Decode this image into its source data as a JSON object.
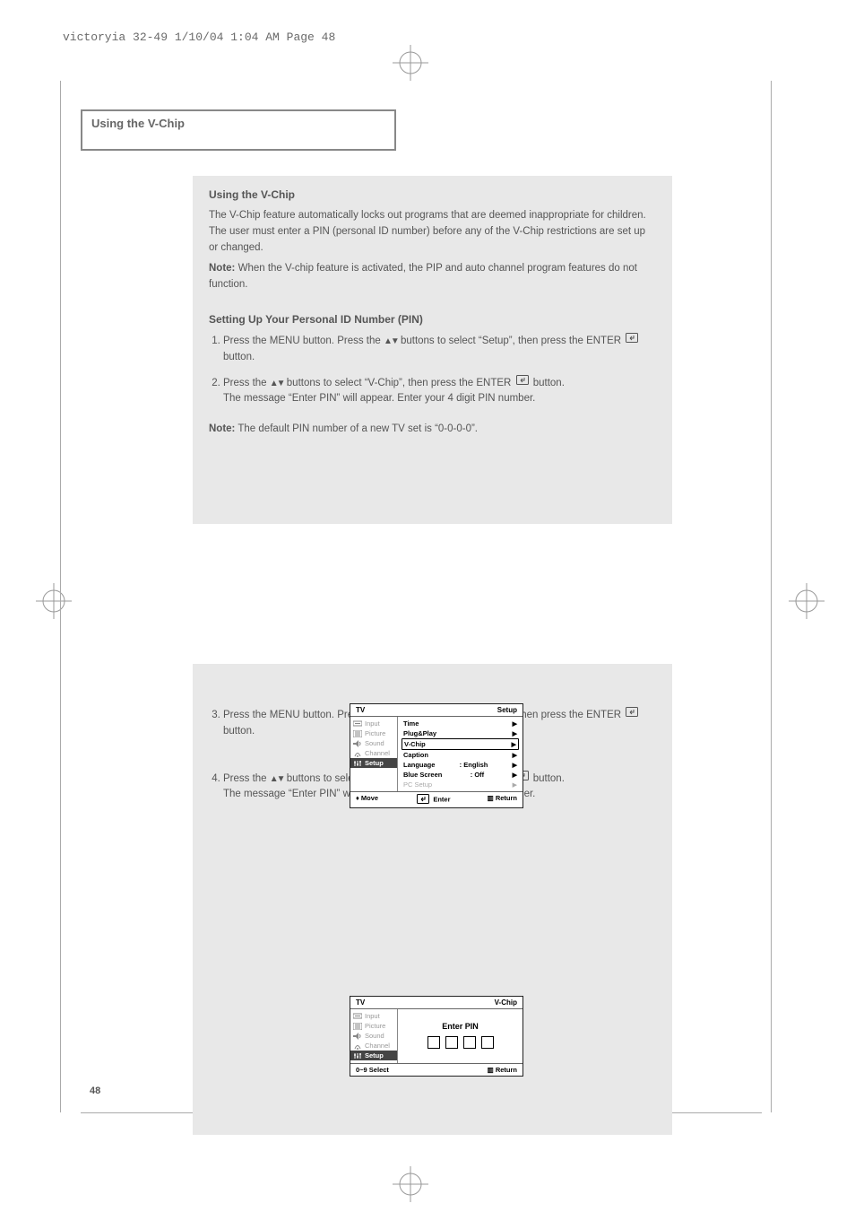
{
  "header": "victoryia 32-49  1/10/04 1:04 AM  Page 48",
  "pagenum": "48",
  "title": {
    "line": "Using the V-Chip"
  },
  "panel1": {
    "heading": "Using the V-Chip",
    "intro": "The V-Chip feature automatically locks out programs that are deemed inappropriate for children. The user must enter a PIN (personal ID number) before any of the V-Chip restrictions are set up or changed.",
    "note_label": "Note:",
    "note_body": "When the V-chip feature is activated, the PIP and auto channel program features do not function.",
    "sub1": "Setting Up Your Personal ID Number (PIN)",
    "step1_a": "Press the MENU button. Press the ",
    "step1_b": " buttons to select “Setup”, then press the ENTER ",
    "step1_c": " button.",
    "step2_a": "Press the ",
    "step2_b": " buttons to select “V-Chip”, then press the ENTER ",
    "step2_c": " button.",
    "step2_d": "The message “Enter PIN” will appear. Enter your 4 digit PIN number.",
    "foot_label": "Note:",
    "foot_body": "The default PIN number of a new TV set is “0-0-0-0”."
  },
  "panel2": {
    "step3_a": "Press the MENU button. Press the ",
    "step3_b": " buttons to select “Setup”, then press the ENTER ",
    "step3_c": " button.",
    "step4_a": "Press the ",
    "step4_b": " buttons to select “V-Chip”, then press the ENTER ",
    "step4_c": " button.",
    "step4_d": "The message “Enter PIN” will appear. Enter your 4 digit PIN number."
  },
  "osd_setup": {
    "title_left": "TV",
    "title_right": "Setup",
    "side": [
      "Input",
      "Picture",
      "Sound",
      "Channel",
      "Setup"
    ],
    "rows": [
      {
        "l": "Time",
        "r": "▶"
      },
      {
        "l": "Plug&Play",
        "r": "▶"
      },
      {
        "l": "V-Chip",
        "r": "▶",
        "sel": true
      },
      {
        "l": "Caption",
        "r": "▶"
      },
      {
        "l": "Language",
        "m": ": English",
        "r": "▶"
      },
      {
        "l": "Blue Screen",
        "m": ": Off",
        "r": "▶"
      },
      {
        "l": "PC Setup",
        "r": "▶",
        "dim": true
      }
    ],
    "bot": [
      "Move",
      "Enter",
      "Return"
    ]
  },
  "osd_pin": {
    "title_left": "TV",
    "title_right": "V-Chip",
    "side": [
      "Input",
      "Picture",
      "Sound",
      "Channel",
      "Setup"
    ],
    "enter_pin": "Enter PIN",
    "bot": [
      "0~9 Select",
      "Return"
    ]
  }
}
